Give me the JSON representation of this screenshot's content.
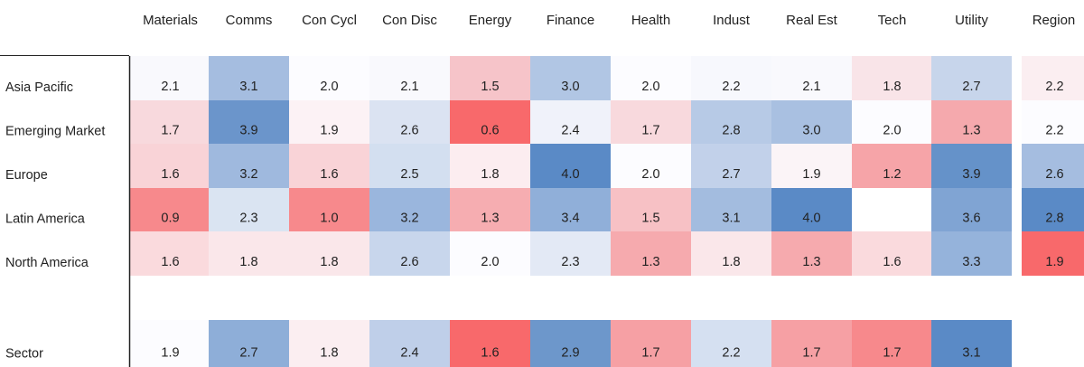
{
  "chart_data": {
    "type": "heatmap",
    "title": "",
    "columns": [
      "Materials",
      "Comms",
      "Con Cycl",
      "Con Disc",
      "Energy",
      "Finance",
      "Health",
      "Indust",
      "Real Est",
      "Tech",
      "Utility"
    ],
    "summary_column": "Region",
    "rows": [
      {
        "label": "Asia Pacific",
        "values": [
          2.1,
          3.1,
          2.0,
          2.1,
          1.5,
          3.0,
          2.0,
          2.2,
          2.1,
          1.8,
          2.7
        ],
        "region": 2.2
      },
      {
        "label": "Emerging Market",
        "values": [
          1.7,
          3.9,
          1.9,
          2.6,
          0.6,
          2.4,
          1.7,
          2.8,
          3.0,
          2.0,
          1.3
        ],
        "region": 2.2
      },
      {
        "label": "Europe",
        "values": [
          1.6,
          3.2,
          1.6,
          2.5,
          1.8,
          4.0,
          2.0,
          2.7,
          1.9,
          1.2,
          3.9
        ],
        "region": 2.6
      },
      {
        "label": "Latin America",
        "values": [
          0.9,
          2.3,
          1.0,
          3.2,
          1.3,
          3.4,
          1.5,
          3.1,
          4.0,
          null,
          3.6
        ],
        "region": 2.8
      },
      {
        "label": "North America",
        "values": [
          1.6,
          1.8,
          1.8,
          2.6,
          2.0,
          2.3,
          1.3,
          1.8,
          1.3,
          1.6,
          3.3
        ],
        "region": 1.9
      }
    ],
    "summary_row": {
      "label": "Sector",
      "values": [
        1.9,
        2.7,
        1.8,
        2.4,
        1.6,
        2.9,
        1.7,
        2.2,
        1.7,
        1.7,
        3.1
      ]
    },
    "color_scale": {
      "low": "#f8696b",
      "mid": "#fcfcff",
      "high": "#5a8ac6"
    },
    "cell_fill": {
      "main": [
        [
          "#f9f9fd",
          "#a5bde0",
          "#fcfcff",
          "#f9f9fd",
          "#f6c4c9",
          "#b1c6e4",
          "#fcfcff",
          "#f7f8fd",
          "#f9f9fd",
          "#f9e4e8",
          "#c7d5eb"
        ],
        [
          "#f8d9dd",
          "#6b95cb",
          "#fcf2f5",
          "#dbe3f2",
          "#f8696b",
          "#f0f2fa",
          "#f8d9dd",
          "#b7cae6",
          "#a9c0e1",
          "#fcfcff",
          "#f5a9ad"
        ],
        [
          "#f9d3d7",
          "#9fb9de",
          "#f9d3d7",
          "#d3dff0",
          "#fcedf0",
          "#5a8ac6",
          "#fcfcff",
          "#c2d1ea",
          "#fbf4f7",
          "#f6a4a8",
          "#6592c9"
        ],
        [
          "#f7898c",
          "#dae4f2",
          "#f7898c",
          "#9ab6dd",
          "#f6adb1",
          "#90afd9",
          "#f7c1c5",
          "#a3bcdf",
          "#5a8ac6",
          "#ffffff",
          "#80a4d3"
        ],
        [
          "#fadadd",
          "#fae7ea",
          "#fae7ea",
          "#c8d6ec",
          "#fcfcff",
          "#e3e9f5",
          "#f6aaae",
          "#fae7ea",
          "#f6aaae",
          "#fadadd",
          "#95b3db"
        ]
      ],
      "region": [
        "#fbeef1",
        "#fcfcff",
        "#a5bde0",
        "#5a8ac6",
        "#f8696b"
      ],
      "sector": [
        "#fcfcff",
        "#8eaed8",
        "#fbeef1",
        "#bfcfe9",
        "#f8696b",
        "#6d97cb",
        "#f6a0a4",
        "#d5e0f1",
        "#f6a0a4",
        "#f7898c",
        "#5a8ac6"
      ]
    }
  }
}
